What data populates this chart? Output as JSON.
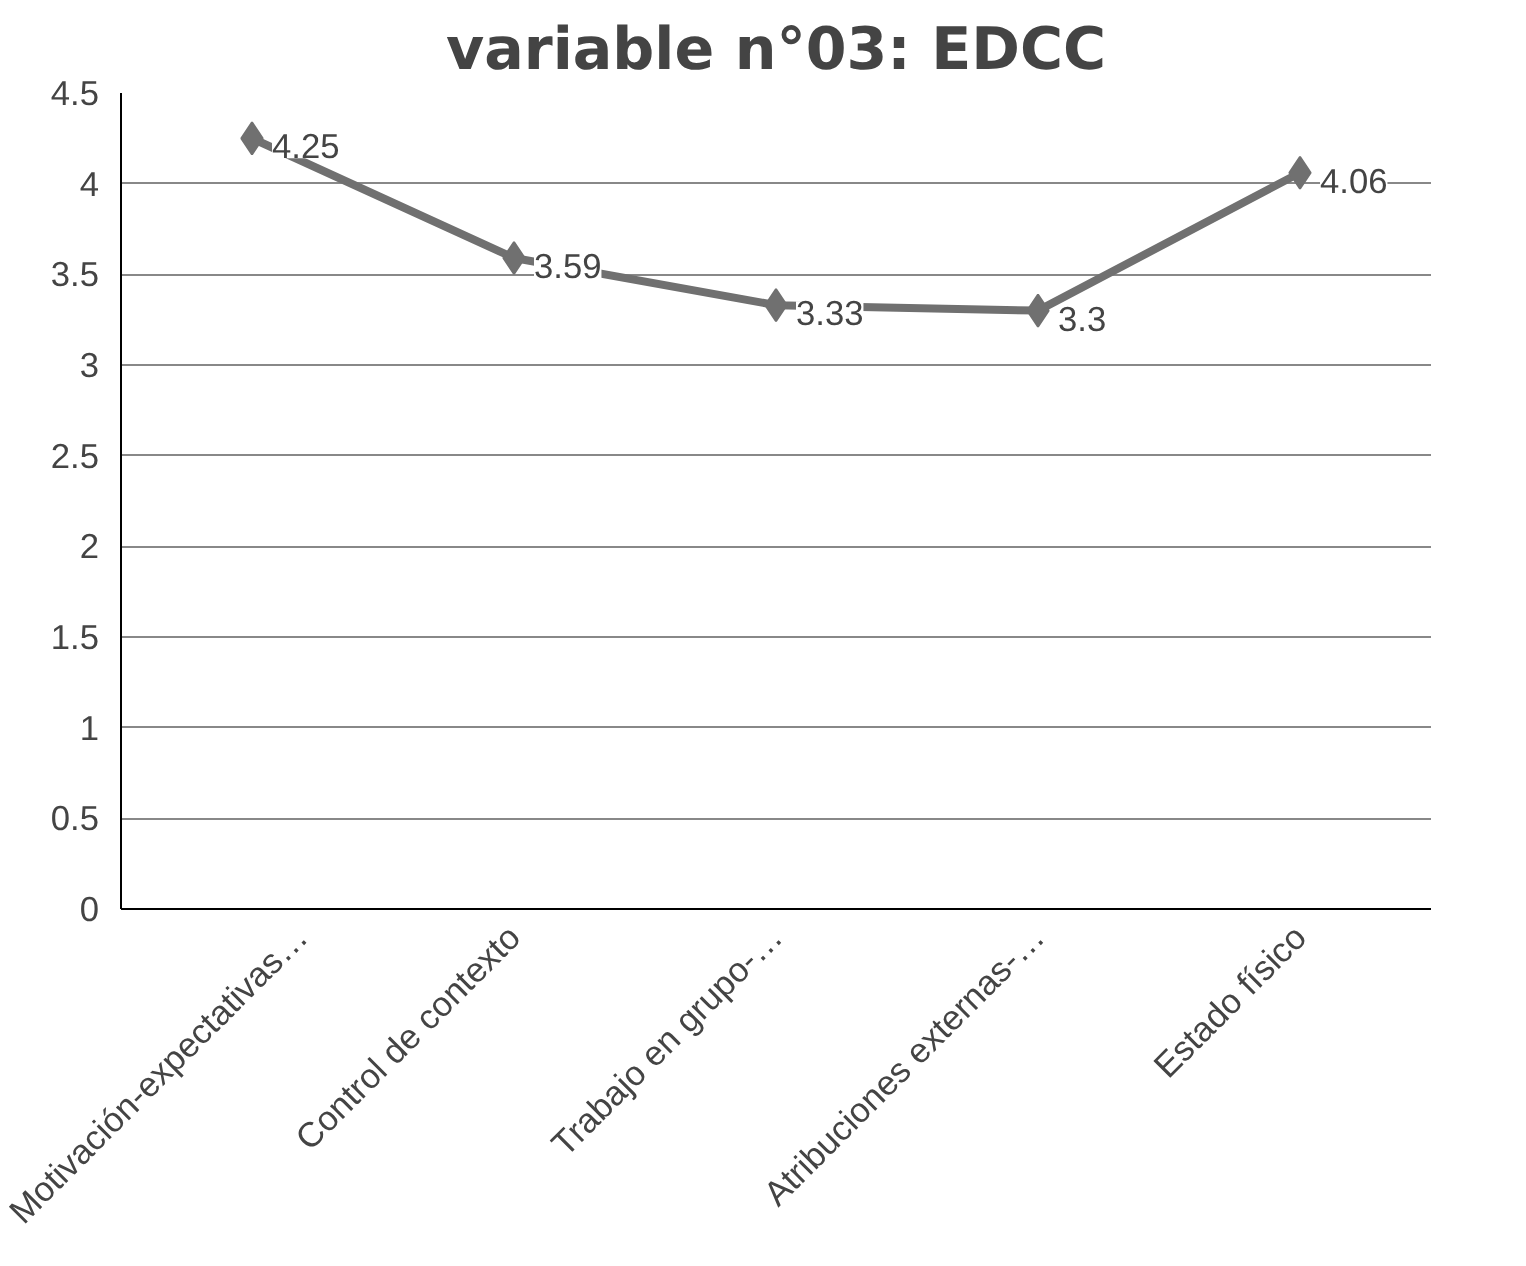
{
  "chart_data": {
    "type": "line",
    "title": "variable n°03: EDCC",
    "categories": [
      "Motivación-expectativas…",
      "Control de contexto",
      "Trabajo en grupo-…",
      "Atribuciones externas-…",
      "Estado físico"
    ],
    "series": [
      {
        "color": "#707070",
        "values": [
          4.25,
          3.59,
          3.33,
          3.3,
          4.06
        ]
      }
    ],
    "ylim": [
      0,
      4.5
    ],
    "yticks": [
      0,
      0.5,
      1,
      1.5,
      2,
      2.5,
      3,
      3.5,
      4,
      4.5
    ],
    "grid": "y",
    "marker": "diamond",
    "line_style": "solid",
    "data_labels": true
  }
}
